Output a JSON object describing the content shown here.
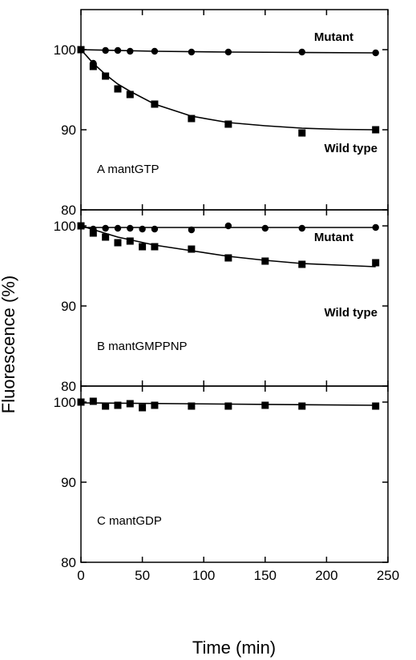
{
  "chart_data": {
    "type": "scatter",
    "xlabel": "Time (min)",
    "ylabel": "Fluorescence (%)",
    "xlim": [
      0,
      250
    ],
    "xticks": [
      0,
      50,
      100,
      150,
      200,
      250
    ],
    "ylim": [
      80,
      105
    ],
    "yticks": [
      80,
      90,
      100
    ],
    "grid": false,
    "panels": [
      {
        "label": "A  mantGTP",
        "series": [
          {
            "name": "Mutant",
            "marker": "circle",
            "x": [
              0,
              10,
              20,
              30,
              40,
              60,
              90,
              120,
              180,
              240
            ],
            "y": [
              100,
              98.3,
              99.9,
              99.9,
              99.8,
              99.8,
              99.7,
              99.7,
              99.7,
              99.6
            ],
            "fit": [
              [
                0,
                100
              ],
              [
                60,
                99.8
              ],
              [
                120,
                99.7
              ],
              [
                180,
                99.65
              ],
              [
                240,
                99.6
              ]
            ]
          },
          {
            "name": "Wild type",
            "marker": "square",
            "x": [
              0,
              10,
              20,
              30,
              40,
              60,
              90,
              120,
              180,
              240
            ],
            "y": [
              100,
              97.9,
              96.7,
              95.1,
              94.4,
              93.2,
              91.4,
              90.7,
              89.6,
              90.0
            ],
            "fit": [
              [
                0,
                100
              ],
              [
                10,
                98.3
              ],
              [
                20,
                96.9
              ],
              [
                30,
                95.7
              ],
              [
                40,
                94.8
              ],
              [
                60,
                93.2
              ],
              [
                90,
                91.7
              ],
              [
                120,
                90.9
              ],
              [
                150,
                90.5
              ],
              [
                180,
                90.2
              ],
              [
                210,
                90.05
              ],
              [
                240,
                90.0
              ]
            ]
          }
        ]
      },
      {
        "label": "B  mantGMPPNP",
        "series": [
          {
            "name": "Mutant",
            "marker": "circle",
            "x": [
              0,
              10,
              20,
              30,
              40,
              50,
              60,
              90,
              120,
              150,
              180,
              240
            ],
            "y": [
              100,
              99.6,
              99.7,
              99.7,
              99.7,
              99.6,
              99.6,
              99.5,
              100,
              99.7,
              99.7,
              99.8
            ],
            "fit": [
              [
                0,
                99.8
              ],
              [
                240,
                99.8
              ]
            ]
          },
          {
            "name": "Wild type",
            "marker": "square",
            "x": [
              0,
              10,
              20,
              30,
              40,
              50,
              60,
              90,
              120,
              150,
              180,
              240
            ],
            "y": [
              100,
              99.1,
              98.6,
              97.9,
              98.1,
              97.4,
              97.4,
              97.1,
              96.0,
              95.6,
              95.2,
              95.4
            ],
            "fit": [
              [
                0,
                100
              ],
              [
                30,
                98.6
              ],
              [
                60,
                97.6
              ],
              [
                90,
                96.9
              ],
              [
                120,
                96.2
              ],
              [
                150,
                95.7
              ],
              [
                180,
                95.3
              ],
              [
                210,
                95.1
              ],
              [
                240,
                94.9
              ]
            ]
          }
        ]
      },
      {
        "label": "C  mantGDP",
        "series": [
          {
            "name": "",
            "marker": "square",
            "x": [
              0,
              10,
              20,
              30,
              40,
              50,
              60,
              90,
              120,
              150,
              180,
              240
            ],
            "y": [
              100,
              100.1,
              99.5,
              99.6,
              99.8,
              99.3,
              99.6,
              99.5,
              99.5,
              99.6,
              99.5,
              99.5
            ],
            "fit": [
              [
                0,
                99.9
              ],
              [
                240,
                99.6
              ]
            ]
          }
        ]
      }
    ]
  }
}
